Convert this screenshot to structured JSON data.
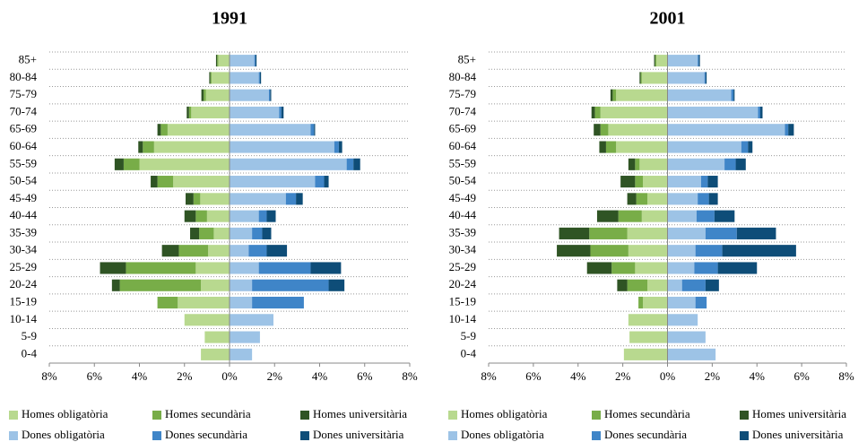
{
  "chart_data": [
    {
      "type": "bar",
      "title": "1991",
      "categories": [
        "0-4",
        "5-9",
        "10-14",
        "15-19",
        "20-24",
        "25-29",
        "30-34",
        "35-39",
        "40-44",
        "45-49",
        "50-54",
        "55-59",
        "60-64",
        "65-69",
        "70-74",
        "75-79",
        "80-84",
        "85+"
      ],
      "series": [
        {
          "name": "Homes obligatòria",
          "color": "#b8d98f",
          "values": [
            -1.27,
            -1.1,
            -2.0,
            -2.3,
            -1.27,
            -1.5,
            -0.95,
            -0.7,
            -1.0,
            -1.3,
            -2.5,
            -4.0,
            -3.35,
            -2.75,
            -1.7,
            -1.05,
            -0.8,
            -0.5
          ]
        },
        {
          "name": "Homes secundària",
          "color": "#78ad48",
          "values": [
            0,
            0,
            0,
            -0.9,
            -3.6,
            -3.1,
            -1.3,
            -0.65,
            -0.5,
            -0.3,
            -0.7,
            -0.7,
            -0.5,
            -0.3,
            -0.1,
            -0.1,
            -0.05,
            -0.05
          ]
        },
        {
          "name": "Homes universitària",
          "color": "#2f5424",
          "values": [
            0,
            0,
            0,
            0,
            -0.35,
            -1.15,
            -0.75,
            -0.4,
            -0.5,
            -0.35,
            -0.3,
            -0.4,
            -0.2,
            -0.15,
            -0.1,
            -0.1,
            -0.05,
            -0.05
          ]
        },
        {
          "name": "Dones obligatòria",
          "color": "#9dc3e6",
          "values": [
            1.0,
            1.35,
            1.95,
            1.0,
            1.0,
            1.3,
            0.85,
            1.0,
            1.3,
            2.5,
            3.8,
            5.2,
            4.65,
            3.6,
            2.2,
            1.75,
            1.3,
            1.1
          ]
        },
        {
          "name": "Dones secundària",
          "color": "#3f85c8",
          "values": [
            0,
            0,
            0,
            2.3,
            3.4,
            2.3,
            0.8,
            0.45,
            0.35,
            0.45,
            0.4,
            0.3,
            0.2,
            0.15,
            0.1,
            0.05,
            0.05,
            0.05
          ]
        },
        {
          "name": "Dones universitària",
          "color": "#0e4d78",
          "values": [
            0,
            0,
            0,
            0,
            0.7,
            1.35,
            0.9,
            0.4,
            0.4,
            0.3,
            0.2,
            0.3,
            0.15,
            0.05,
            0.1,
            0.05,
            0.05,
            0.05
          ]
        }
      ],
      "xlim": [
        -8,
        8
      ],
      "xticks": [
        {
          "value": -8,
          "label": "8%"
        },
        {
          "value": -6,
          "label": "6%"
        },
        {
          "value": -4,
          "label": "4%"
        },
        {
          "value": -2,
          "label": "2%"
        },
        {
          "value": 0,
          "label": "0%"
        },
        {
          "value": 2,
          "label": "2%"
        },
        {
          "value": 4,
          "label": "4%"
        },
        {
          "value": 6,
          "label": "6%"
        },
        {
          "value": 8,
          "label": "8%"
        }
      ],
      "grid": true
    },
    {
      "type": "bar",
      "title": "2001",
      "categories": [
        "0-4",
        "5-9",
        "10-14",
        "15-19",
        "20-24",
        "25-29",
        "30-34",
        "35-39",
        "40-44",
        "45-49",
        "50-54",
        "55-59",
        "60-64",
        "65-69",
        "70-74",
        "75-79",
        "80-84",
        "85+"
      ],
      "series": [
        {
          "name": "Homes obligatòria",
          "color": "#b8d98f",
          "values": [
            -1.95,
            -1.7,
            -1.75,
            -1.1,
            -0.9,
            -1.45,
            -1.75,
            -1.8,
            -1.15,
            -0.9,
            -1.1,
            -1.25,
            -2.3,
            -2.65,
            -3.0,
            -2.3,
            -1.15,
            -0.5
          ]
        },
        {
          "name": "Homes secundària",
          "color": "#78ad48",
          "values": [
            0,
            0,
            0,
            -0.2,
            -0.9,
            -1.05,
            -1.7,
            -1.7,
            -1.05,
            -0.5,
            -0.35,
            -0.2,
            -0.45,
            -0.35,
            -0.25,
            -0.15,
            -0.05,
            -0.05
          ]
        },
        {
          "name": "Homes universitària",
          "color": "#2f5424",
          "values": [
            0,
            0,
            0,
            0,
            -0.45,
            -1.1,
            -1.5,
            -1.35,
            -0.95,
            -0.4,
            -0.65,
            -0.3,
            -0.3,
            -0.3,
            -0.15,
            -0.1,
            -0.05,
            -0.05
          ]
        },
        {
          "name": "Dones obligatòria",
          "color": "#9dc3e6",
          "values": [
            2.15,
            1.7,
            1.35,
            1.25,
            0.65,
            1.2,
            1.25,
            1.7,
            1.3,
            1.35,
            1.5,
            2.55,
            3.3,
            5.25,
            4.05,
            2.85,
            1.65,
            1.35
          ]
        },
        {
          "name": "Dones secundària",
          "color": "#3f85c8",
          "values": [
            0,
            0,
            0,
            0.5,
            1.05,
            1.05,
            1.2,
            1.4,
            0.8,
            0.5,
            0.3,
            0.5,
            0.3,
            0.15,
            0.1,
            0.1,
            0.05,
            0.05
          ]
        },
        {
          "name": "Dones universitària",
          "color": "#0e4d78",
          "values": [
            0,
            0,
            0,
            0,
            0.6,
            1.75,
            3.3,
            1.75,
            0.9,
            0.4,
            0.45,
            0.45,
            0.2,
            0.25,
            0.1,
            0.05,
            0.05,
            0.05
          ]
        }
      ],
      "xlim": [
        -8,
        8
      ],
      "xticks": [
        {
          "value": -8,
          "label": "8%"
        },
        {
          "value": -6,
          "label": "6%"
        },
        {
          "value": -4,
          "label": "4%"
        },
        {
          "value": -2,
          "label": "2%"
        },
        {
          "value": 0,
          "label": "0%"
        },
        {
          "value": 2,
          "label": "2%"
        },
        {
          "value": 4,
          "label": "4%"
        },
        {
          "value": 6,
          "label": "6%"
        },
        {
          "value": 8,
          "label": "8%"
        }
      ],
      "grid": true
    }
  ]
}
